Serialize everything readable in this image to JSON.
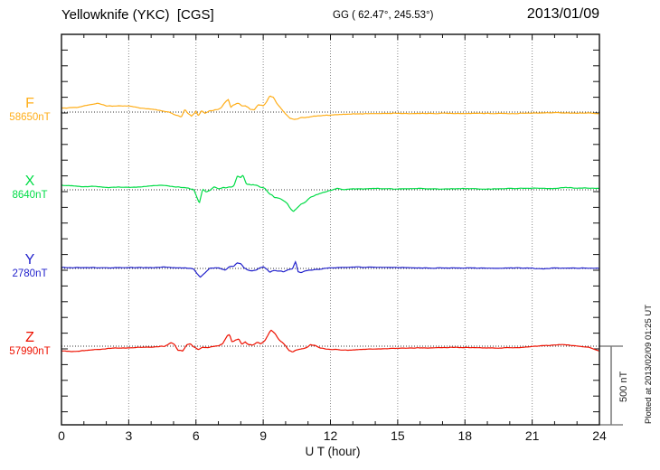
{
  "header": {
    "title": "Yellowknife (YKC)  [CGS]",
    "gg": "GG ( 62.47°, 245.53°)",
    "date": "2013/01/09"
  },
  "xaxis": {
    "label": "U T (hour)",
    "min": 0,
    "max": 24,
    "major_ticks": [
      0,
      3,
      6,
      9,
      12,
      15,
      18,
      21,
      24
    ],
    "minor_step_hours": 1
  },
  "scalebar": {
    "label": "500 nT",
    "value_nT": 500
  },
  "plot_note": "Plotted at 2013/02/09 01:25 UT",
  "colors": {
    "frame": "#111111",
    "grid": "#8a8a8a",
    "baseline": "#333333",
    "scalebar": "#777777"
  },
  "chart_data": {
    "type": "line",
    "title": "Yellowknife (YKC) [CGS] magnetogram 2013/01/09",
    "xlabel": "U T (hour)",
    "xlim": [
      0,
      24
    ],
    "grid": "vertical-dotted-every-3h",
    "legend_position": "left-of-each-trace",
    "y_scale_note": "offsets in nT from each channel baseline; 500 nT reference bar at right",
    "series": [
      {
        "name": "F",
        "baseline_nT": 58650,
        "baseline_label": "58650nT",
        "color": "#FFAE19",
        "points": [
          [
            0,
            25
          ],
          [
            0.7,
            30
          ],
          [
            1.2,
            45
          ],
          [
            1.6,
            57
          ],
          [
            2.0,
            40
          ],
          [
            2.6,
            38
          ],
          [
            3.0,
            40
          ],
          [
            3.5,
            25
          ],
          [
            4.2,
            15
          ],
          [
            4.8,
            0
          ],
          [
            5.1,
            -20
          ],
          [
            5.35,
            -30
          ],
          [
            5.5,
            15
          ],
          [
            5.65,
            -10
          ],
          [
            5.8,
            -25
          ],
          [
            6.0,
            5
          ],
          [
            6.1,
            -25
          ],
          [
            6.25,
            10
          ],
          [
            6.4,
            -10
          ],
          [
            6.6,
            5
          ],
          [
            6.9,
            15
          ],
          [
            7.1,
            25
          ],
          [
            7.35,
            70
          ],
          [
            7.45,
            80
          ],
          [
            7.55,
            30
          ],
          [
            7.7,
            45
          ],
          [
            7.9,
            60
          ],
          [
            8.05,
            35
          ],
          [
            8.2,
            40
          ],
          [
            8.4,
            20
          ],
          [
            8.6,
            15
          ],
          [
            8.8,
            45
          ],
          [
            9.0,
            40
          ],
          [
            9.15,
            65
          ],
          [
            9.3,
            105
          ],
          [
            9.45,
            95
          ],
          [
            9.6,
            60
          ],
          [
            9.8,
            20
          ],
          [
            10.0,
            -15
          ],
          [
            10.2,
            -40
          ],
          [
            10.4,
            -45
          ],
          [
            10.7,
            -35
          ],
          [
            11.0,
            -30
          ],
          [
            11.4,
            -25
          ],
          [
            11.8,
            -20
          ],
          [
            12.5,
            -15
          ],
          [
            13.5,
            -10
          ],
          [
            15,
            -8
          ],
          [
            16,
            -10
          ],
          [
            17,
            -8
          ],
          [
            18,
            -10
          ],
          [
            19,
            -8
          ],
          [
            20,
            -10
          ],
          [
            21,
            -6
          ],
          [
            22,
            -4
          ],
          [
            23,
            -8
          ],
          [
            23.6,
            -5
          ],
          [
            24,
            -12
          ]
        ]
      },
      {
        "name": "X",
        "baseline_nT": 8640,
        "baseline_label": "8640nT",
        "color": "#00DC46",
        "points": [
          [
            0,
            30
          ],
          [
            0.5,
            25
          ],
          [
            1.0,
            20
          ],
          [
            1.5,
            22
          ],
          [
            2.0,
            15
          ],
          [
            2.5,
            18
          ],
          [
            3.0,
            15
          ],
          [
            3.5,
            18
          ],
          [
            4.0,
            25
          ],
          [
            4.5,
            30
          ],
          [
            5.0,
            20
          ],
          [
            5.5,
            15
          ],
          [
            5.9,
            0
          ],
          [
            6.05,
            -50
          ],
          [
            6.15,
            -85
          ],
          [
            6.3,
            5
          ],
          [
            6.45,
            -15
          ],
          [
            6.6,
            -5
          ],
          [
            6.8,
            15
          ],
          [
            7.0,
            10
          ],
          [
            7.2,
            12
          ],
          [
            7.5,
            18
          ],
          [
            7.7,
            25
          ],
          [
            7.85,
            90
          ],
          [
            8.0,
            80
          ],
          [
            8.1,
            95
          ],
          [
            8.25,
            40
          ],
          [
            8.45,
            30
          ],
          [
            8.7,
            25
          ],
          [
            8.9,
            18
          ],
          [
            9.1,
            5
          ],
          [
            9.3,
            -25
          ],
          [
            9.5,
            -45
          ],
          [
            9.7,
            -55
          ],
          [
            9.9,
            -70
          ],
          [
            10.1,
            -95
          ],
          [
            10.25,
            -125
          ],
          [
            10.35,
            -140
          ],
          [
            10.5,
            -115
          ],
          [
            10.7,
            -90
          ],
          [
            10.9,
            -75
          ],
          [
            11.1,
            -50
          ],
          [
            11.4,
            -30
          ],
          [
            11.7,
            -15
          ],
          [
            12.0,
            -5
          ],
          [
            12.3,
            8
          ],
          [
            12.6,
            2
          ],
          [
            13,
            5
          ],
          [
            14,
            8
          ],
          [
            15,
            5
          ],
          [
            16,
            8
          ],
          [
            17,
            5
          ],
          [
            18,
            8
          ],
          [
            19,
            5
          ],
          [
            20,
            8
          ],
          [
            21,
            10
          ],
          [
            22,
            8
          ],
          [
            22.5,
            15
          ],
          [
            23,
            10
          ],
          [
            23.5,
            12
          ],
          [
            24,
            10
          ]
        ]
      },
      {
        "name": "Y",
        "baseline_nT": 2780,
        "baseline_label": "2780nT",
        "color": "#2222CC",
        "points": [
          [
            0,
            5
          ],
          [
            1,
            6
          ],
          [
            2,
            4
          ],
          [
            3,
            6
          ],
          [
            4,
            5
          ],
          [
            4.5,
            8
          ],
          [
            5,
            5
          ],
          [
            5.5,
            3
          ],
          [
            5.9,
            -2
          ],
          [
            6.05,
            -35
          ],
          [
            6.2,
            -55
          ],
          [
            6.4,
            -25
          ],
          [
            6.6,
            0
          ],
          [
            6.9,
            5
          ],
          [
            7.1,
            -2
          ],
          [
            7.3,
            -12
          ],
          [
            7.5,
            8
          ],
          [
            7.7,
            15
          ],
          [
            7.85,
            35
          ],
          [
            8.0,
            28
          ],
          [
            8.15,
            5
          ],
          [
            8.3,
            -8
          ],
          [
            8.5,
            -15
          ],
          [
            8.7,
            -5
          ],
          [
            8.9,
            8
          ],
          [
            9.0,
            15
          ],
          [
            9.15,
            -5
          ],
          [
            9.3,
            -25
          ],
          [
            9.5,
            -12
          ],
          [
            9.7,
            -20
          ],
          [
            9.9,
            -22
          ],
          [
            10.1,
            -8
          ],
          [
            10.3,
            -2
          ],
          [
            10.45,
            45
          ],
          [
            10.55,
            -20
          ],
          [
            10.7,
            -25
          ],
          [
            10.9,
            -15
          ],
          [
            11.2,
            -10
          ],
          [
            11.6,
            -5
          ],
          [
            12,
            5
          ],
          [
            13,
            8
          ],
          [
            14,
            8
          ],
          [
            15,
            6
          ],
          [
            16,
            3
          ],
          [
            17,
            2
          ],
          [
            18,
            4
          ],
          [
            19,
            2
          ],
          [
            20,
            3
          ],
          [
            21,
            2
          ],
          [
            21.5,
            -3
          ],
          [
            22,
            3
          ],
          [
            23,
            2
          ],
          [
            24,
            2
          ]
        ]
      },
      {
        "name": "Z",
        "baseline_nT": 57990,
        "baseline_label": "57990nT",
        "color": "#EE1100",
        "points": [
          [
            0,
            -28
          ],
          [
            0.4,
            -35
          ],
          [
            0.8,
            -32
          ],
          [
            1.2,
            -25
          ],
          [
            1.8,
            -18
          ],
          [
            2.4,
            -12
          ],
          [
            3.0,
            -10
          ],
          [
            3.6,
            -8
          ],
          [
            4.2,
            -5
          ],
          [
            4.6,
            0
          ],
          [
            4.9,
            22
          ],
          [
            5.05,
            10
          ],
          [
            5.2,
            -25
          ],
          [
            5.4,
            -30
          ],
          [
            5.6,
            8
          ],
          [
            5.75,
            15
          ],
          [
            5.9,
            -5
          ],
          [
            6.1,
            -22
          ],
          [
            6.3,
            -8
          ],
          [
            6.5,
            -10
          ],
          [
            6.8,
            -2
          ],
          [
            7.0,
            2
          ],
          [
            7.2,
            15
          ],
          [
            7.4,
            65
          ],
          [
            7.5,
            70
          ],
          [
            7.6,
            25
          ],
          [
            7.75,
            35
          ],
          [
            7.9,
            45
          ],
          [
            8.05,
            12
          ],
          [
            8.2,
            25
          ],
          [
            8.35,
            8
          ],
          [
            8.5,
            5
          ],
          [
            8.7,
            28
          ],
          [
            8.9,
            18
          ],
          [
            9.1,
            40
          ],
          [
            9.25,
            80
          ],
          [
            9.35,
            105
          ],
          [
            9.5,
            88
          ],
          [
            9.65,
            55
          ],
          [
            9.8,
            30
          ],
          [
            10.0,
            5
          ],
          [
            10.15,
            -30
          ],
          [
            10.3,
            -38
          ],
          [
            10.5,
            -22
          ],
          [
            10.7,
            -15
          ],
          [
            10.9,
            -12
          ],
          [
            11.1,
            10
          ],
          [
            11.3,
            5
          ],
          [
            11.5,
            -8
          ],
          [
            11.8,
            -18
          ],
          [
            12.2,
            -22
          ],
          [
            12.8,
            -25
          ],
          [
            13.5,
            -20
          ],
          [
            14.5,
            -16
          ],
          [
            15.5,
            -12
          ],
          [
            16.5,
            -10
          ],
          [
            17.5,
            -8
          ],
          [
            18.5,
            -10
          ],
          [
            19.5,
            -12
          ],
          [
            20.5,
            -8
          ],
          [
            21.2,
            0
          ],
          [
            21.8,
            5
          ],
          [
            22.3,
            10
          ],
          [
            22.8,
            5
          ],
          [
            23.2,
            -2
          ],
          [
            23.5,
            -5
          ],
          [
            23.8,
            -20
          ],
          [
            24,
            -30
          ]
        ]
      }
    ]
  }
}
